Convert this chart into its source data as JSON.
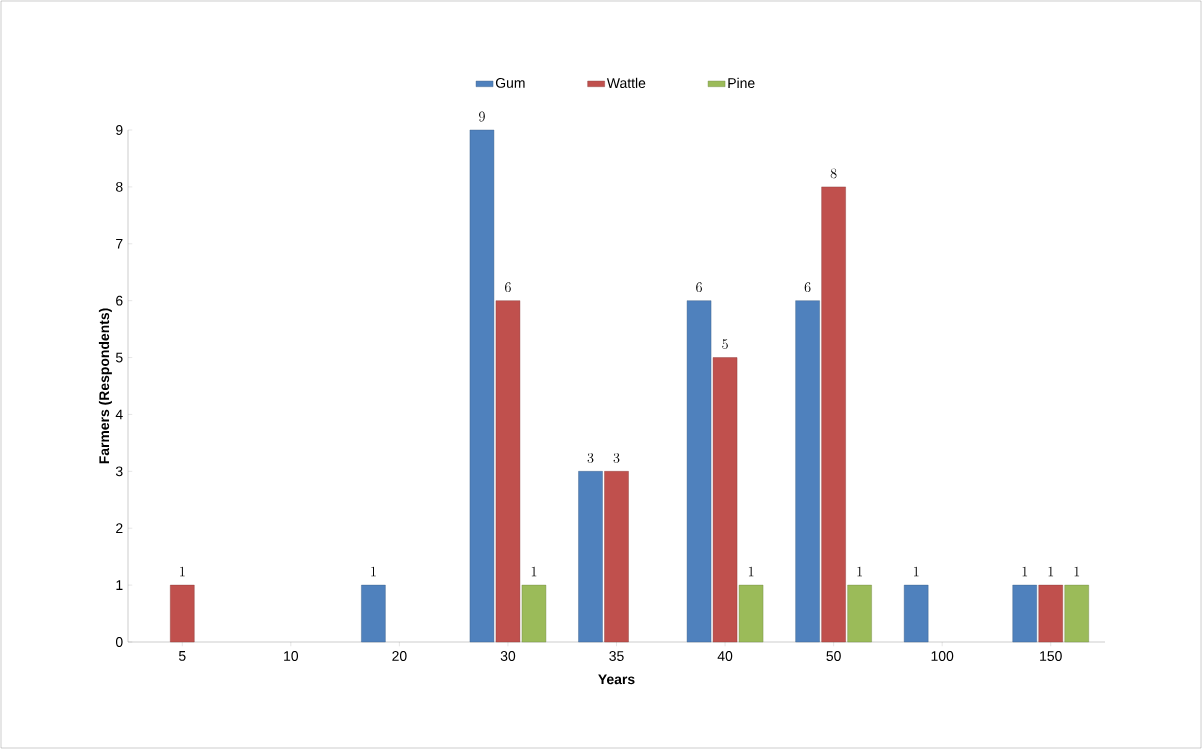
{
  "chart_data": {
    "type": "bar",
    "xlabel": "Years",
    "ylabel": "Farmers (Respondents)",
    "categories": [
      "5",
      "10",
      "20",
      "30",
      "35",
      "40",
      "50",
      "100",
      "150"
    ],
    "series": [
      {
        "name": "Gum",
        "color": "#4f81bd",
        "values": [
          null,
          null,
          1,
          9,
          3,
          6,
          6,
          1,
          1
        ]
      },
      {
        "name": "Wattle",
        "color": "#c0504d",
        "values": [
          1,
          null,
          null,
          6,
          3,
          5,
          8,
          null,
          1
        ]
      },
      {
        "name": "Pine",
        "color": "#9bbb59",
        "values": [
          null,
          null,
          null,
          1,
          null,
          1,
          1,
          null,
          1
        ]
      }
    ],
    "ylim": [
      0,
      9
    ],
    "yticks": [
      0,
      1,
      2,
      3,
      4,
      5,
      6,
      7,
      8,
      9
    ],
    "data_labels": true,
    "legend": "top"
  }
}
